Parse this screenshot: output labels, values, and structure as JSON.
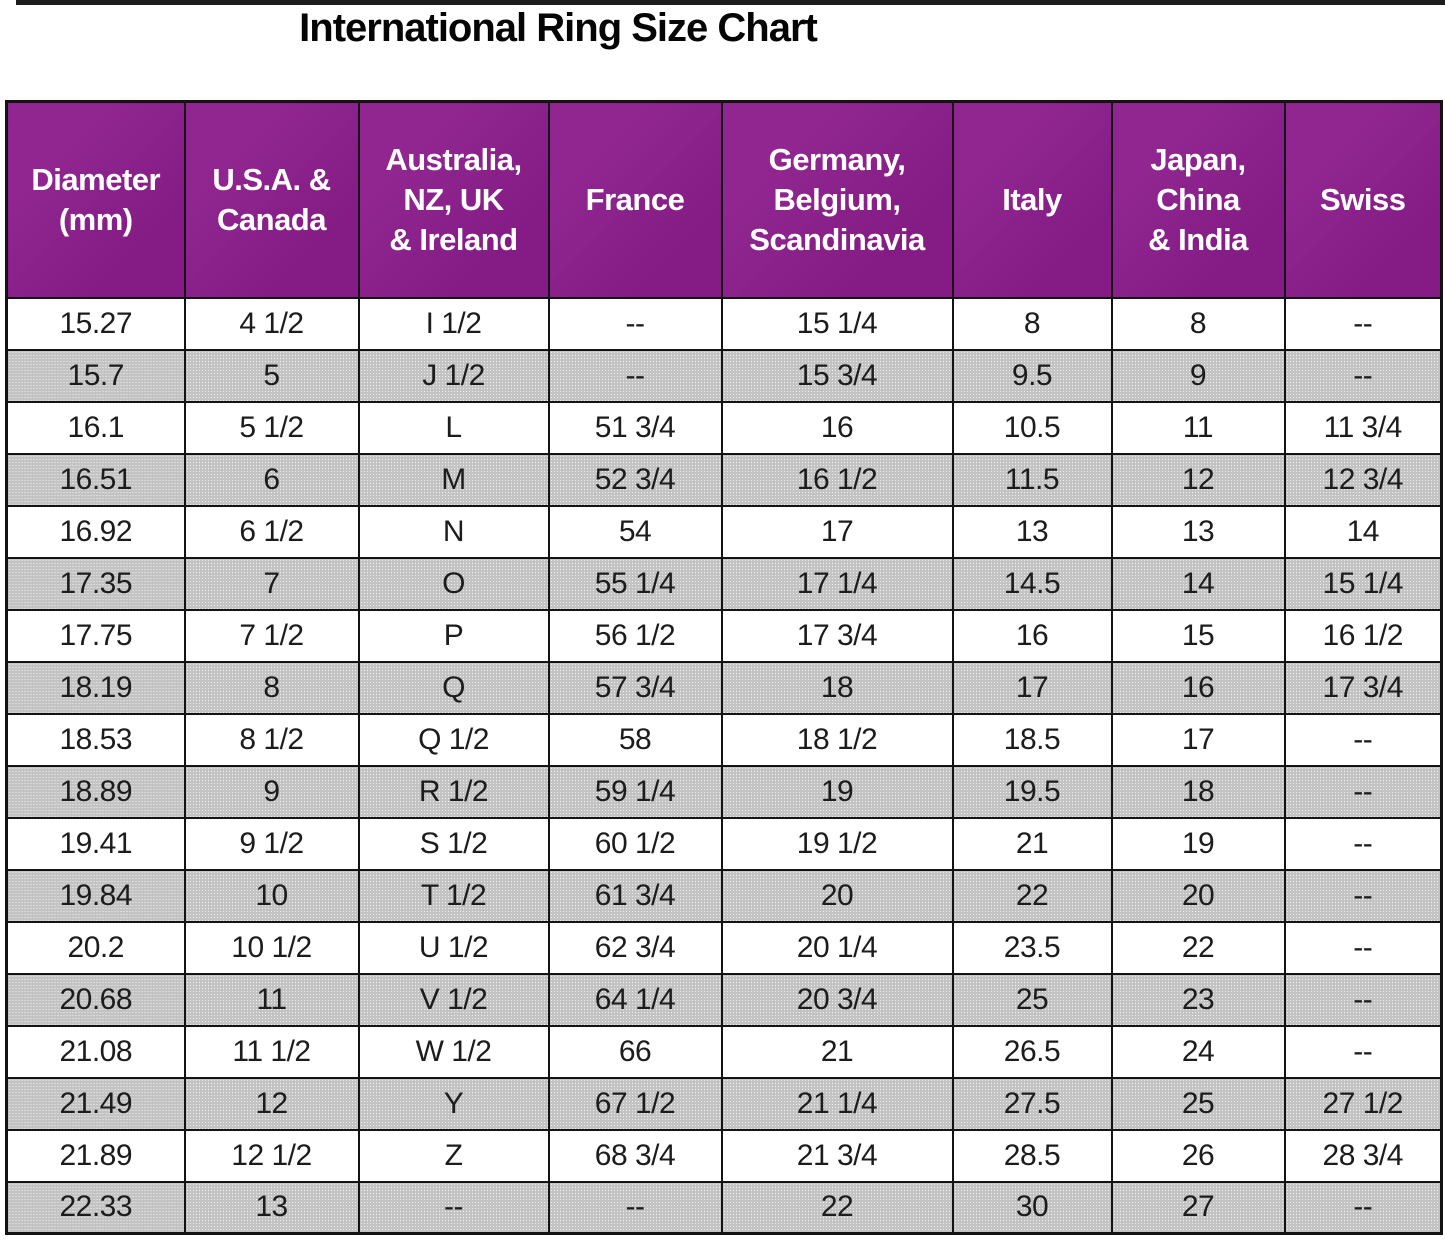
{
  "title": "International Ring Size Chart",
  "colors": {
    "header_bg": "#8c1d8c",
    "header_text": "#ffffff",
    "row_alt_bg": "#c3c3c3",
    "row_bg": "#ffffff",
    "border": "#131313",
    "text": "#1c1c1c"
  },
  "table": {
    "columns": [
      "Diameter\n(mm)",
      "U.S.A. &\nCanada",
      "Australia,\nNZ, UK\n& Ireland",
      "France",
      "Germany,\nBelgium,\nScandinavia",
      "Italy",
      "Japan,\nChina\n& India",
      "Swiss"
    ],
    "rows": [
      [
        "15.27",
        "4 1/2",
        "I 1/2",
        "--",
        "15 1/4",
        "8",
        "8",
        "--"
      ],
      [
        "15.7",
        "5",
        "J 1/2",
        "--",
        "15 3/4",
        "9.5",
        "9",
        "--"
      ],
      [
        "16.1",
        "5 1/2",
        "L",
        "51 3/4",
        "16",
        "10.5",
        "11",
        "11 3/4"
      ],
      [
        "16.51",
        "6",
        "M",
        "52 3/4",
        "16 1/2",
        "11.5",
        "12",
        "12 3/4"
      ],
      [
        "16.92",
        "6 1/2",
        "N",
        "54",
        "17",
        "13",
        "13",
        "14"
      ],
      [
        "17.35",
        "7",
        "O",
        "55 1/4",
        "17 1/4",
        "14.5",
        "14",
        "15 1/4"
      ],
      [
        "17.75",
        "7 1/2",
        "P",
        "56 1/2",
        "17 3/4",
        "16",
        "15",
        "16 1/2"
      ],
      [
        "18.19",
        "8",
        "Q",
        "57 3/4",
        "18",
        "17",
        "16",
        "17 3/4"
      ],
      [
        "18.53",
        "8 1/2",
        "Q 1/2",
        "58",
        "18 1/2",
        "18.5",
        "17",
        "--"
      ],
      [
        "18.89",
        "9",
        "R 1/2",
        "59 1/4",
        "19",
        "19.5",
        "18",
        "--"
      ],
      [
        "19.41",
        "9 1/2",
        "S 1/2",
        "60 1/2",
        "19 1/2",
        "21",
        "19",
        "--"
      ],
      [
        "19.84",
        "10",
        "T 1/2",
        "61 3/4",
        "20",
        "22",
        "20",
        "--"
      ],
      [
        "20.2",
        "10 1/2",
        "U 1/2",
        "62 3/4",
        "20 1/4",
        "23.5",
        "22",
        "--"
      ],
      [
        "20.68",
        "11",
        "V 1/2",
        "64 1/4",
        "20 3/4",
        "25",
        "23",
        "--"
      ],
      [
        "21.08",
        "11 1/2",
        "W 1/2",
        "66",
        "21",
        "26.5",
        "24",
        "--"
      ],
      [
        "21.49",
        "12",
        "Y",
        "67 1/2",
        "21 1/4",
        "27.5",
        "25",
        "27 1/2"
      ],
      [
        "21.89",
        "12 1/2",
        "Z",
        "68 3/4",
        "21 3/4",
        "28.5",
        "26",
        "28 3/4"
      ],
      [
        "22.33",
        "13",
        "--",
        "--",
        "22",
        "30",
        "27",
        "--"
      ]
    ]
  }
}
